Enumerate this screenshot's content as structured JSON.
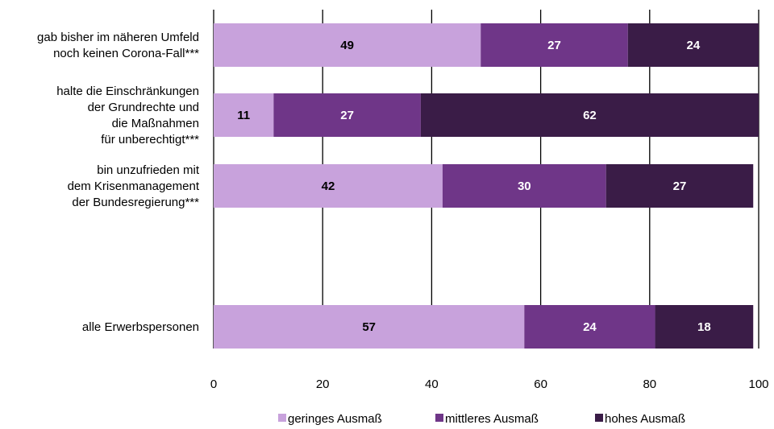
{
  "chart_data": {
    "type": "bar",
    "orientation": "horizontal",
    "stacked": true,
    "categories": [
      [
        "gab bisher im näheren Umfeld",
        "noch keinen Corona-Fall***"
      ],
      [
        "halte die Einschränkungen",
        "der Grundrechte und",
        "die Maßnahmen",
        "für unberechtigt***"
      ],
      [
        "bin unzufrieden mit",
        "dem Krisenmanagement",
        "der Bundesregierung***"
      ],
      [],
      [
        "alle Erwerbspersonen"
      ]
    ],
    "series": [
      {
        "name": "geringes Ausmaß",
        "color": "#c8a2dc",
        "label_color": "#000000",
        "values": [
          49,
          11,
          42,
          null,
          57
        ]
      },
      {
        "name": "mittleres Ausmaß",
        "color": "#6f3688",
        "label_color": "#ffffff",
        "values": [
          27,
          27,
          30,
          null,
          24
        ]
      },
      {
        "name": "hohes Ausmaß",
        "color": "#3a1c47",
        "label_color": "#ffffff",
        "values": [
          24,
          62,
          27,
          null,
          18
        ]
      }
    ],
    "xlim": [
      0,
      100
    ],
    "xticks": [
      0,
      20,
      40,
      60,
      80,
      100
    ],
    "grid": "vertical",
    "legend_position": "bottom"
  }
}
